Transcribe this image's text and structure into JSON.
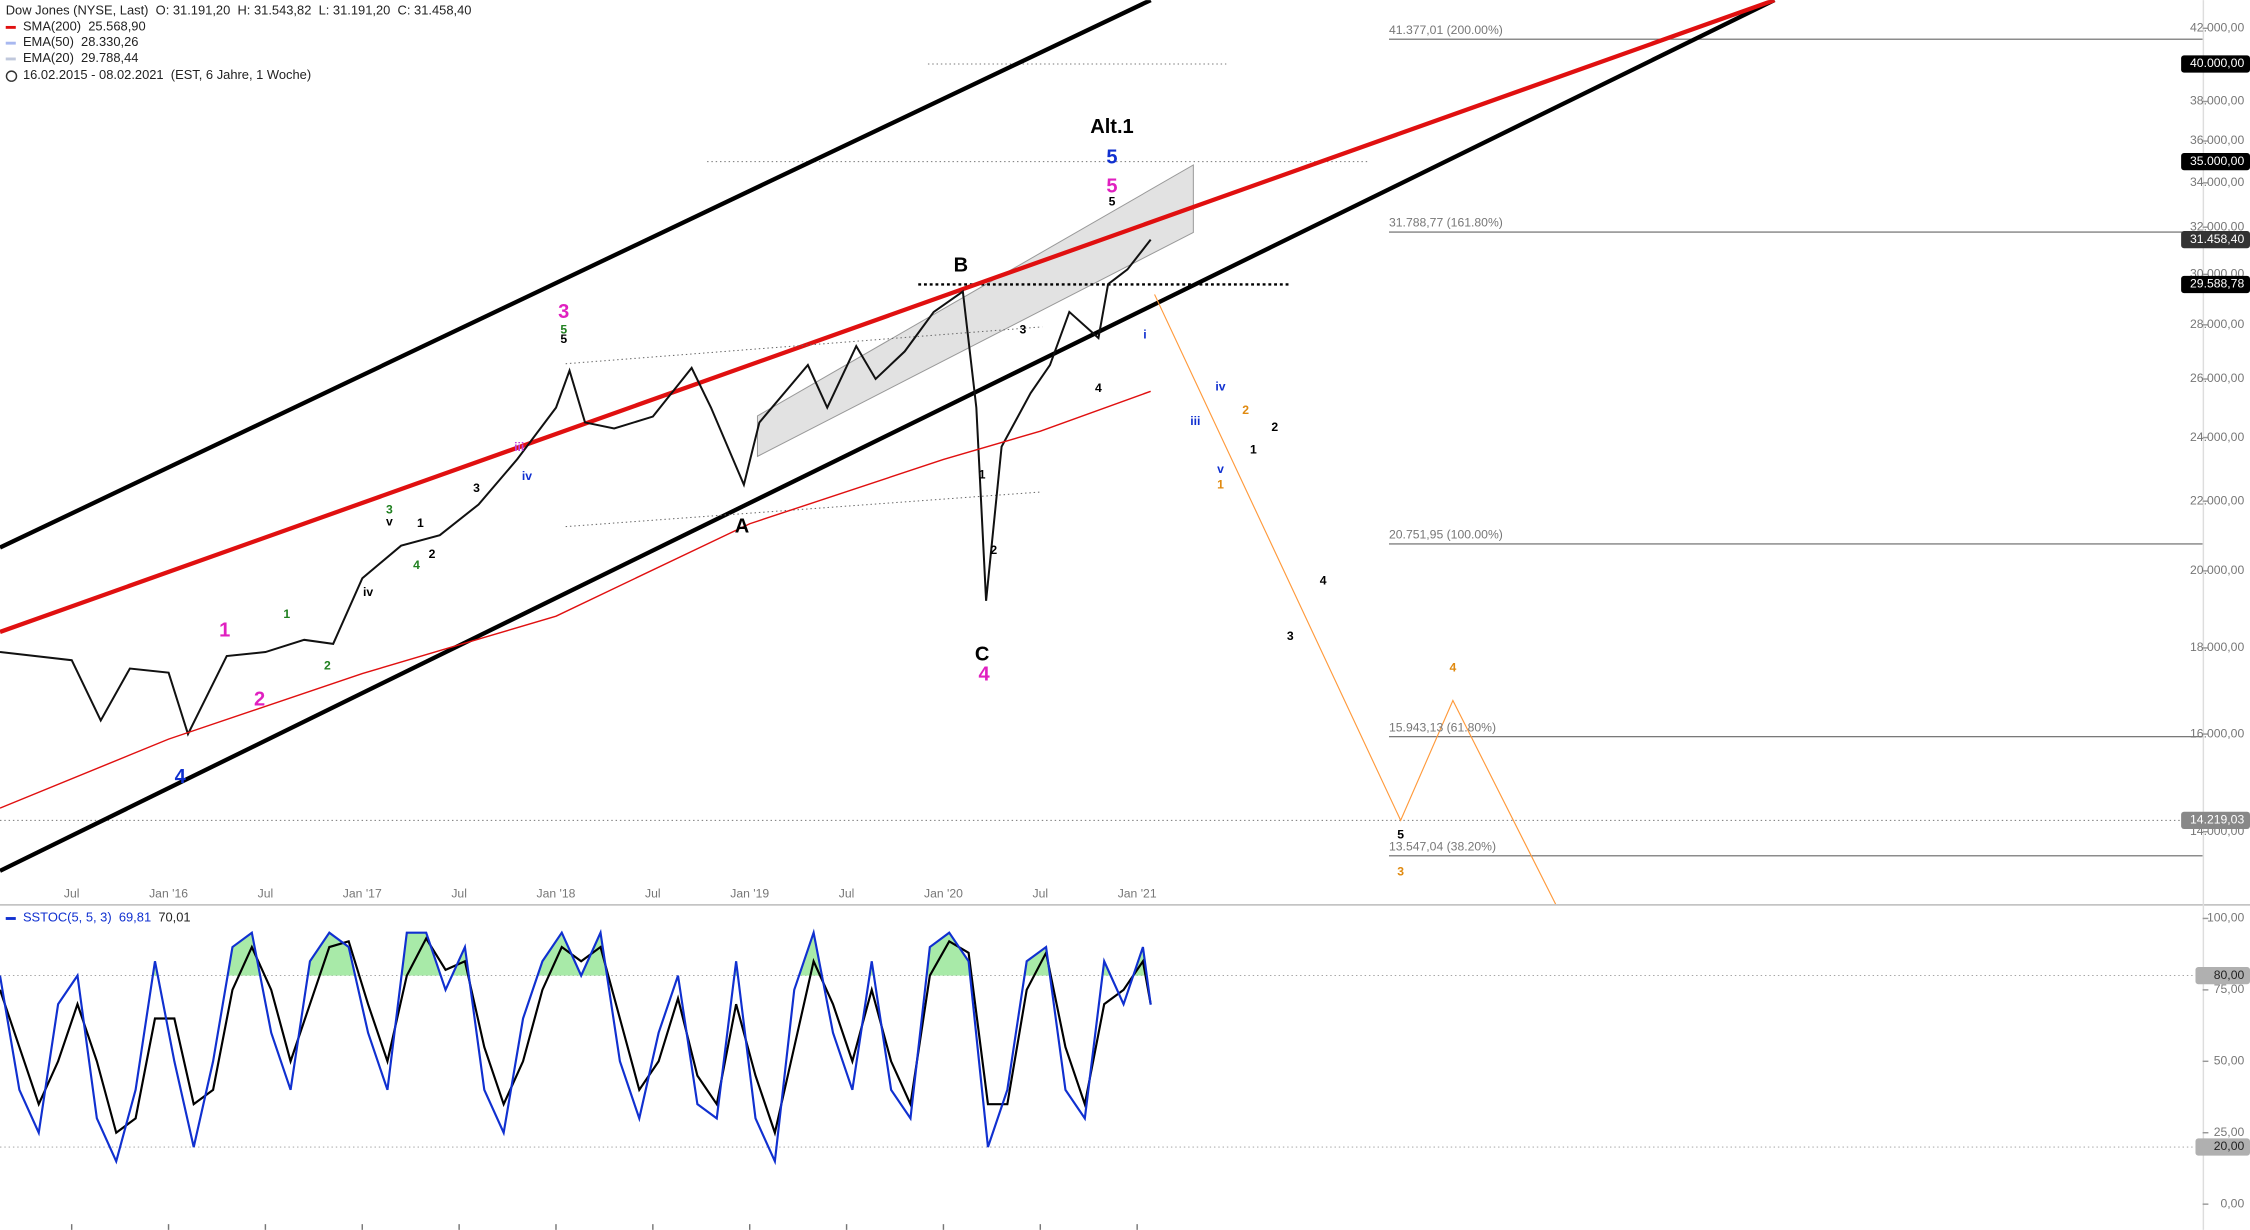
{
  "chart_data": [
    {
      "type": "line",
      "title": "Dow Jones (NYSE, Last)",
      "ohlc": [
        "O: 31.191,20",
        "H: 31.543,82",
        "L: 31.191,20",
        "C: 31.458,40"
      ],
      "date_range": "16.02.2015 - 08.02.2021",
      "period": "(EST, 6 Jahre, 1 Woche)",
      "log_scale": true,
      "xlim": [
        2015.13,
        2026.5
      ],
      "ylim": [
        12680,
        43650
      ],
      "xticks": [
        {
          "value": 2015.5,
          "label": "Jul"
        },
        {
          "value": 2016.0,
          "label": "Jan '16"
        },
        {
          "value": 2016.5,
          "label": "Jul"
        },
        {
          "value": 2017.0,
          "label": "Jan '17"
        },
        {
          "value": 2017.5,
          "label": "Jul"
        },
        {
          "value": 2018.0,
          "label": "Jan '18"
        },
        {
          "value": 2018.5,
          "label": "Jul"
        },
        {
          "value": 2019.0,
          "label": "Jan '19"
        },
        {
          "value": 2019.5,
          "label": "Jul"
        },
        {
          "value": 2020.0,
          "label": "Jan '20"
        },
        {
          "value": 2020.5,
          "label": "Jul"
        },
        {
          "value": 2021.0,
          "label": "Jan '21"
        }
      ],
      "yticks": [
        {
          "value": 14000,
          "label": "14.000,00"
        },
        {
          "value": 16000,
          "label": "16.000,00"
        },
        {
          "value": 18000,
          "label": "18.000,00"
        },
        {
          "value": 20000,
          "label": "20.000,00"
        },
        {
          "value": 22000,
          "label": "22.000,00"
        },
        {
          "value": 24000,
          "label": "24.000,00"
        },
        {
          "value": 26000,
          "label": "26.000,00"
        },
        {
          "value": 28000,
          "label": "28.000,00"
        },
        {
          "value": 30000,
          "label": "30.000,00"
        },
        {
          "value": 32000,
          "label": "32.000,00"
        },
        {
          "value": 34000,
          "label": "34.000,00"
        },
        {
          "value": 36000,
          "label": "36.000,00"
        },
        {
          "value": 38000,
          "label": "38.000,00"
        },
        {
          "value": 40000,
          "label": "40.000,00"
        },
        {
          "value": 42000,
          "label": "42.000,00"
        }
      ],
      "series": [
        {
          "color": "#111111",
          "x": [
            2015.13,
            2015.5,
            2015.65,
            2015.8,
            2016.0,
            2016.1,
            2016.3,
            2016.5,
            2016.7,
            2016.85,
            2017.0,
            2017.2,
            2017.4,
            2017.6,
            2017.8,
            2018.0,
            2018.07,
            2018.15,
            2018.3,
            2018.5,
            2018.7,
            2018.8,
            2018.97,
            2019.05,
            2019.3,
            2019.4,
            2019.55,
            2019.65,
            2019.8,
            2019.95,
            2020.1,
            2020.17,
            2020.22,
            2020.3,
            2020.45,
            2020.55,
            2020.65,
            2020.8,
            2020.85,
            2020.95,
            2021.07
          ],
          "values": [
            17900,
            17700,
            16300,
            17500,
            17400,
            16000,
            17800,
            17900,
            18200,
            18100,
            19800,
            20700,
            21000,
            21900,
            23300,
            25000,
            26300,
            24500,
            24300,
            24700,
            26400,
            25000,
            22500,
            24500,
            26500,
            25000,
            27200,
            26000,
            27000,
            28500,
            29300,
            25000,
            19200,
            23700,
            25500,
            26500,
            28500,
            27500,
            29600,
            30200,
            31458.4
          ]
        },
        {
          "name": "SMA(200)",
          "value_label": "25.568,90",
          "color": "#e01010",
          "x": [
            2015.13,
            2016.0,
            2017.0,
            2018.0,
            2019.0,
            2020.0,
            2020.5,
            2021.07
          ],
          "values": [
            14460,
            15890,
            17380,
            18800,
            21330,
            23290,
            24210,
            25568.9
          ]
        },
        {
          "name": "EMA(50)",
          "value_label": "28.330,26",
          "color": "#a8b8f0"
        },
        {
          "name": "EMA(20)",
          "value_label": "29.788,44",
          "color": "#c0c8dc"
        }
      ],
      "trendlines": [
        {
          "color": "#000000",
          "style": "bold",
          "x": [
            2015.13,
            2021.07
          ],
          "values": [
            20650,
            43650
          ]
        },
        {
          "color": "#000000",
          "style": "bold",
          "x": [
            2015.13,
            2024.29
          ],
          "values": [
            13270,
            43650
          ]
        },
        {
          "color": "#e01010",
          "style": "bold",
          "x": [
            2015.13,
            2024.29
          ],
          "values": [
            18400,
            43650
          ]
        },
        {
          "color": "#666666",
          "style": "dotted",
          "x": [
            2018.05,
            2020.51
          ],
          "values": [
            26550,
            27920
          ]
        },
        {
          "color": "#666666",
          "style": "dotted",
          "x": [
            2018.05,
            2020.51
          ],
          "values": [
            21250,
            22280
          ]
        },
        {
          "color": "#ff9a3c",
          "style": "thin",
          "x": [
            2021.09,
            2022.36,
            2022.63,
            2023.16
          ],
          "values": [
            29190,
            14220,
            16750,
            12680
          ]
        }
      ],
      "channel": {
        "color": "#d8d8d8",
        "x": [
          2019.04,
          2021.29,
          2021.29,
          2019.04
        ],
        "values": [
          24720,
          34840,
          31770,
          23390
        ]
      },
      "hlines": [
        {
          "value": 40000,
          "label": "40.000,00",
          "badge_color": "#000000",
          "from": 2019.92,
          "to": 2021.46,
          "style": "dotted"
        },
        {
          "value": 35000,
          "label": "35.000,00",
          "badge_color": "#000000",
          "from": 2018.78,
          "to": 2022.2,
          "style": "dotted"
        },
        {
          "value": 31458.4,
          "label": "31.458,40",
          "badge_color": "#333333"
        },
        {
          "value": 29588.78,
          "label": "29.588,78",
          "badge_color": "#000000",
          "from": 2019.87,
          "to": 2021.79,
          "style": "bold-dotted"
        },
        {
          "value": 14219.03,
          "label": "14.219,03",
          "badge_color": "#888888",
          "from": 2015.13,
          "style": "dotted"
        }
      ],
      "levels": [
        {
          "value": 41377.01,
          "label": "41.377,01 (200.00%)",
          "from": 2022.3
        },
        {
          "value": 31788.77,
          "label": "31.788,77 (161.80%)",
          "from": 2022.3
        },
        {
          "value": 20751.95,
          "label": "20.751,95 (100.00%)",
          "from": 2022.3
        },
        {
          "value": 15943.13,
          "label": "15.943,13 (61.80%)",
          "from": 2022.3
        },
        {
          "value": 13547.04,
          "label": "13.547,04 (38.20%)",
          "from": 2022.3
        }
      ],
      "labels_major": [
        {
          "text": "1",
          "color": "#e020c0",
          "x": 2016.29,
          "y": 18420
        },
        {
          "text": "2",
          "color": "#e020c0",
          "x": 2016.47,
          "y": 16760
        },
        {
          "text": "4",
          "color": "#1030d0",
          "x": 2016.06,
          "y": 15070
        },
        {
          "text": "3",
          "color": "#e020c0",
          "x": 2018.04,
          "y": 28460
        },
        {
          "text": "A",
          "color": "#000000",
          "x": 2018.96,
          "y": 21230
        },
        {
          "text": "B",
          "color": "#000000",
          "x": 2020.09,
          "y": 30330
        },
        {
          "text": "C",
          "color": "#000000",
          "x": 2020.2,
          "y": 17820
        },
        {
          "text": "4",
          "color": "#e020c0",
          "x": 2020.21,
          "y": 17340
        },
        {
          "text": "5",
          "color": "#e020c0",
          "x": 2020.87,
          "y": 33800
        },
        {
          "text": "5",
          "color": "#1030d0",
          "x": 2020.87,
          "y": 35160
        },
        {
          "text": "Alt.1",
          "color": "#000000",
          "x": 2020.87,
          "y": 36650
        }
      ],
      "labels_minor": [
        {
          "text": "1",
          "color": "#208020",
          "x": 2016.61,
          "y": 18830
        },
        {
          "text": "2",
          "color": "#208020",
          "x": 2016.82,
          "y": 17550
        },
        {
          "text": "3",
          "color": "#208020",
          "x": 2017.14,
          "y": 21730
        },
        {
          "text": "v",
          "color": "#000000",
          "x": 2017.14,
          "y": 21380
        },
        {
          "text": "iv",
          "color": "#000000",
          "x": 2017.03,
          "y": 19410
        },
        {
          "text": "1",
          "color": "#000000",
          "x": 2017.3,
          "y": 21330
        },
        {
          "text": "2",
          "color": "#000000",
          "x": 2017.36,
          "y": 20440
        },
        {
          "text": "4",
          "color": "#208020",
          "x": 2017.28,
          "y": 20140
        },
        {
          "text": "3",
          "color": "#000000",
          "x": 2017.59,
          "y": 22380
        },
        {
          "text": "iii",
          "color": "#c040e0",
          "x": 2017.81,
          "y": 23660
        },
        {
          "text": "iv",
          "color": "#1030d0",
          "x": 2017.85,
          "y": 22750
        },
        {
          "text": "5",
          "color": "#208020",
          "x": 2018.04,
          "y": 27800
        },
        {
          "text": "5",
          "color": "#000000",
          "x": 2018.04,
          "y": 27430
        },
        {
          "text": "3",
          "color": "#000000",
          "x": 2020.41,
          "y": 27800
        },
        {
          "text": "1",
          "color": "#000000",
          "x": 2020.2,
          "y": 22800
        },
        {
          "text": "2",
          "color": "#000000",
          "x": 2020.26,
          "y": 20560
        },
        {
          "text": "4",
          "color": "#000000",
          "x": 2020.8,
          "y": 25650
        },
        {
          "text": "5",
          "color": "#000000",
          "x": 2020.87,
          "y": 33100
        },
        {
          "text": "i",
          "color": "#1030d0",
          "x": 2021.04,
          "y": 27600
        },
        {
          "text": "iii",
          "color": "#1030d0",
          "x": 2021.3,
          "y": 24530
        },
        {
          "text": "iv",
          "color": "#1030d0",
          "x": 2021.43,
          "y": 25700
        },
        {
          "text": "v",
          "color": "#1030d0",
          "x": 2021.43,
          "y": 22960
        },
        {
          "text": "2",
          "color": "#e08a10",
          "x": 2021.56,
          "y": 24900
        },
        {
          "text": "1",
          "color": "#e08a10",
          "x": 2021.43,
          "y": 22490
        },
        {
          "text": "2",
          "color": "#000000",
          "x": 2021.71,
          "y": 24320
        },
        {
          "text": "1",
          "color": "#000000",
          "x": 2021.6,
          "y": 23590
        },
        {
          "text": "4",
          "color": "#000000",
          "x": 2021.96,
          "y": 19720
        },
        {
          "text": "3",
          "color": "#000000",
          "x": 2021.79,
          "y": 18280
        },
        {
          "text": "4",
          "color": "#e08a10",
          "x": 2022.63,
          "y": 17500
        },
        {
          "text": "5",
          "color": "#000000",
          "x": 2022.36,
          "y": 13930
        },
        {
          "text": "3",
          "color": "#e08a10",
          "x": 2022.36,
          "y": 13240
        }
      ]
    },
    {
      "type": "line",
      "legend": "SSTOC(5, 5, 3)",
      "xlim": [
        2015.13,
        2026.5
      ],
      "ylim": [
        -9,
        104
      ],
      "yticks": [
        {
          "value": 0,
          "label": "0,00"
        },
        {
          "value": 25,
          "label": "25,00"
        },
        {
          "value": 50,
          "label": "50,00"
        },
        {
          "value": 75,
          "label": "75,00"
        },
        {
          "value": 100,
          "label": "100,00"
        }
      ],
      "hlines": [
        {
          "value": 80,
          "label": "80,00"
        },
        {
          "value": 20,
          "label": "20,00"
        }
      ],
      "fill_above": 80,
      "fill_color": "#a8eaa8",
      "x": [
        2015.13,
        2015.23,
        2015.33,
        2015.43,
        2015.53,
        2015.63,
        2015.73,
        2015.83,
        2015.93,
        2016.03,
        2016.13,
        2016.23,
        2016.33,
        2016.43,
        2016.53,
        2016.63,
        2016.73,
        2016.83,
        2016.93,
        2017.03,
        2017.13,
        2017.23,
        2017.33,
        2017.43,
        2017.53,
        2017.63,
        2017.73,
        2017.83,
        2017.93,
        2018.03,
        2018.13,
        2018.23,
        2018.33,
        2018.43,
        2018.53,
        2018.63,
        2018.73,
        2018.83,
        2018.93,
        2019.03,
        2019.13,
        2019.23,
        2019.33,
        2019.43,
        2019.53,
        2019.63,
        2019.73,
        2019.83,
        2019.93,
        2020.03,
        2020.13,
        2020.23,
        2020.33,
        2020.43,
        2020.53,
        2020.63,
        2020.73,
        2020.83,
        2020.93,
        2021.03,
        2021.07
      ],
      "series": [
        {
          "color": "#1030d0",
          "value_label": "69,81",
          "values": [
            80,
            40,
            25,
            70,
            80,
            30,
            15,
            40,
            85,
            50,
            20,
            50,
            90,
            95,
            60,
            40,
            85,
            95,
            90,
            60,
            40,
            95,
            95,
            75,
            90,
            40,
            25,
            65,
            85,
            95,
            80,
            95,
            50,
            30,
            60,
            80,
            35,
            30,
            85,
            30,
            15,
            75,
            95,
            60,
            40,
            85,
            40,
            30,
            90,
            95,
            85,
            20,
            40,
            85,
            90,
            40,
            30,
            85,
            70,
            90,
            69.81
          ]
        },
        {
          "color": "#000000",
          "value_label": "70,01",
          "values": [
            75,
            55,
            35,
            50,
            70,
            50,
            25,
            30,
            65,
            65,
            35,
            40,
            75,
            90,
            75,
            50,
            70,
            90,
            92,
            70,
            50,
            80,
            93,
            82,
            85,
            55,
            35,
            50,
            75,
            90,
            85,
            90,
            65,
            40,
            50,
            72,
            45,
            35,
            70,
            45,
            25,
            55,
            85,
            70,
            50,
            75,
            50,
            35,
            80,
            92,
            88,
            35,
            35,
            75,
            88,
            55,
            35,
            70,
            75,
            85,
            70.01
          ]
        }
      ]
    }
  ]
}
